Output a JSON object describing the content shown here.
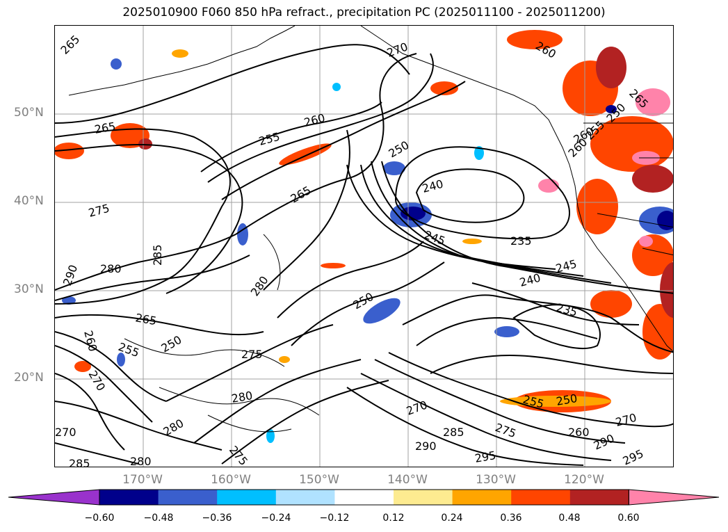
{
  "title": "2025010900 F060 850 hPa refract., precipitation PC (2025011100 - 2025011200)",
  "axes": {
    "lat_labels": [
      "50°N",
      "40°N",
      "30°N",
      "20°N"
    ],
    "lon_labels": [
      "170°W",
      "160°W",
      "150°W",
      "140°W",
      "130°W",
      "120°W"
    ],
    "grid": true
  },
  "colorbar": {
    "ticks": [
      "−0.60",
      "−0.48",
      "−0.36",
      "−0.24",
      "−0.12",
      "0.12",
      "0.24",
      "0.36",
      "0.48",
      "0.60"
    ],
    "colors": [
      "#9932cc",
      "#00008b",
      "#3a5fcd",
      "#00bfff",
      "#b0e2ff",
      "#ffffff",
      "#fdeb90",
      "#ffa500",
      "#ff4500",
      "#b22222",
      "#ff83aa"
    ],
    "extend": "both"
  },
  "contour_labels": [
    "265",
    "270",
    "260",
    "265",
    "255",
    "260",
    "250",
    "240",
    "275",
    "265",
    "285",
    "245",
    "235",
    "260",
    "265",
    "280",
    "245",
    "240",
    "290",
    "280",
    "235",
    "265",
    "250",
    "260",
    "255",
    "250",
    "270",
    "275",
    "280",
    "255",
    "250",
    "270",
    "270",
    "285",
    "275",
    "260",
    "270",
    "290",
    "280",
    "285",
    "280",
    "275",
    "295",
    "295",
    "290",
    "260",
    "255",
    "250"
  ]
}
